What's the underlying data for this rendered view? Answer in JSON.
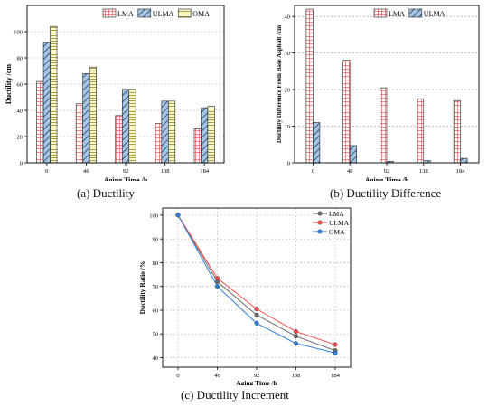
{
  "colors": {
    "LMA": "#e8484c",
    "ULMA": "#3a6ea5",
    "OMA": "#b8b54c",
    "line_LMA": "#6b6b6b",
    "line_ULMA": "#ff4a4a",
    "line_OMA": "#2f7fd8"
  },
  "chart_data": [
    {
      "type": "bar",
      "title": "",
      "xlabel": "Aging Time /h",
      "ylabel": "Ductility /cm",
      "caption": "(a)  Ductility",
      "categories": [
        "0",
        "46",
        "92",
        "138",
        "184"
      ],
      "ylim": [
        0,
        120
      ],
      "yticks": [
        "0",
        "20",
        "40",
        "60",
        "80",
        "100"
      ],
      "grid": true,
      "legend_position": "top-right",
      "series": [
        {
          "name": "LMA",
          "values": [
            62,
            45,
            36,
            30,
            26
          ]
        },
        {
          "name": "ULMA",
          "values": [
            92,
            68,
            56,
            47,
            42
          ]
        },
        {
          "name": "OMA",
          "values": [
            104,
            73,
            56,
            47,
            43
          ]
        }
      ]
    },
    {
      "type": "bar",
      "title": "",
      "xlabel": "Aging Time /h",
      "ylabel": "Ductility Difference From Base Asphalt /cm",
      "caption": "(b)  Ductility Difference",
      "categories": [
        "0",
        "46",
        "92",
        "138",
        "184"
      ],
      "ylim": [
        0,
        43
      ],
      "yticks": [
        "0",
        "10",
        "20",
        "30",
        "40"
      ],
      "grid": true,
      "legend_position": "top-right",
      "series": [
        {
          "name": "LMA",
          "values": [
            42,
            28,
            20.5,
            17.5,
            17
          ]
        },
        {
          "name": "ULMA",
          "values": [
            11,
            4.7,
            0.4,
            0.6,
            1.2
          ]
        }
      ]
    },
    {
      "type": "line",
      "title": "",
      "xlabel": "Aging Time /h",
      "ylabel": "Ductility Ratio /%",
      "caption": "(c)  Ductility Increment",
      "x": [
        0,
        46,
        92,
        138,
        184
      ],
      "xticks": [
        "0",
        "46",
        "92",
        "138",
        "184"
      ],
      "xlim": [
        -18,
        202
      ],
      "ylim": [
        36,
        103
      ],
      "yticks": [
        "40",
        "50",
        "60",
        "70",
        "80",
        "90",
        "100"
      ],
      "grid": true,
      "legend_position": "top-right",
      "series": [
        {
          "name": "LMA",
          "values": [
            100,
            72,
            58,
            49,
            43
          ]
        },
        {
          "name": "ULMA",
          "values": [
            100,
            73.5,
            60.5,
            51,
            45.5
          ]
        },
        {
          "name": "OMA",
          "values": [
            100,
            70,
            54.5,
            46,
            42
          ]
        }
      ]
    }
  ]
}
